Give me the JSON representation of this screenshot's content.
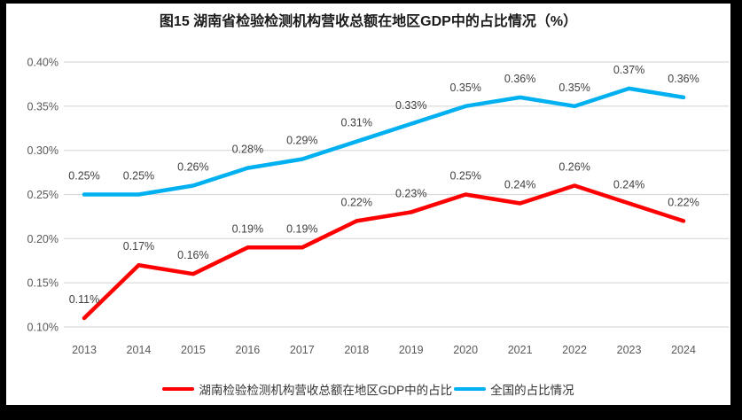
{
  "title": "图15 湖南省检验检测机构营收总额在地区GDP中的占比情况（%）",
  "chart_data": {
    "type": "line",
    "x": [
      "2013",
      "2014",
      "2015",
      "2016",
      "2017",
      "2018",
      "2019",
      "2020",
      "2021",
      "2022",
      "2023",
      "2024"
    ],
    "series": [
      {
        "name": "湖南检验检测机构营收总额在地区GDP中的占比",
        "color": "#FE0000",
        "values": [
          0.11,
          0.17,
          0.16,
          0.19,
          0.19,
          0.22,
          0.23,
          0.25,
          0.24,
          0.26,
          0.24,
          0.22
        ],
        "labels": [
          "0.11%",
          "0.17%",
          "0.16%",
          "0.19%",
          "0.19%",
          "0.22%",
          "0.23%",
          "0.25%",
          "0.24%",
          "0.26%",
          "0.24%",
          "0.22%"
        ]
      },
      {
        "name": "全国的占比情况",
        "color": "#00B0F0",
        "values": [
          0.25,
          0.25,
          0.26,
          0.28,
          0.29,
          0.31,
          0.33,
          0.35,
          0.36,
          0.35,
          0.37,
          0.36
        ],
        "labels": [
          "0.25%",
          "0.25%",
          "0.26%",
          "0.28%",
          "0.29%",
          "0.31%",
          "0.33%",
          "0.35%",
          "0.36%",
          "0.35%",
          "0.37%",
          "0.36%"
        ]
      }
    ],
    "ylim": [
      0.1,
      0.4
    ],
    "yticks": [
      "0.10%",
      "0.15%",
      "0.20%",
      "0.25%",
      "0.30%",
      "0.35%",
      "0.40%"
    ],
    "xlabel": "",
    "ylabel": "",
    "grid": true,
    "legend_position": "bottom"
  },
  "colors": {
    "grid": "#D9D9D9",
    "tick_text": "#595959",
    "data_label_text": "#3F3F3F",
    "title_text": "#1A1A1A",
    "frame": "#000000",
    "background": "#FFFFFF"
  }
}
